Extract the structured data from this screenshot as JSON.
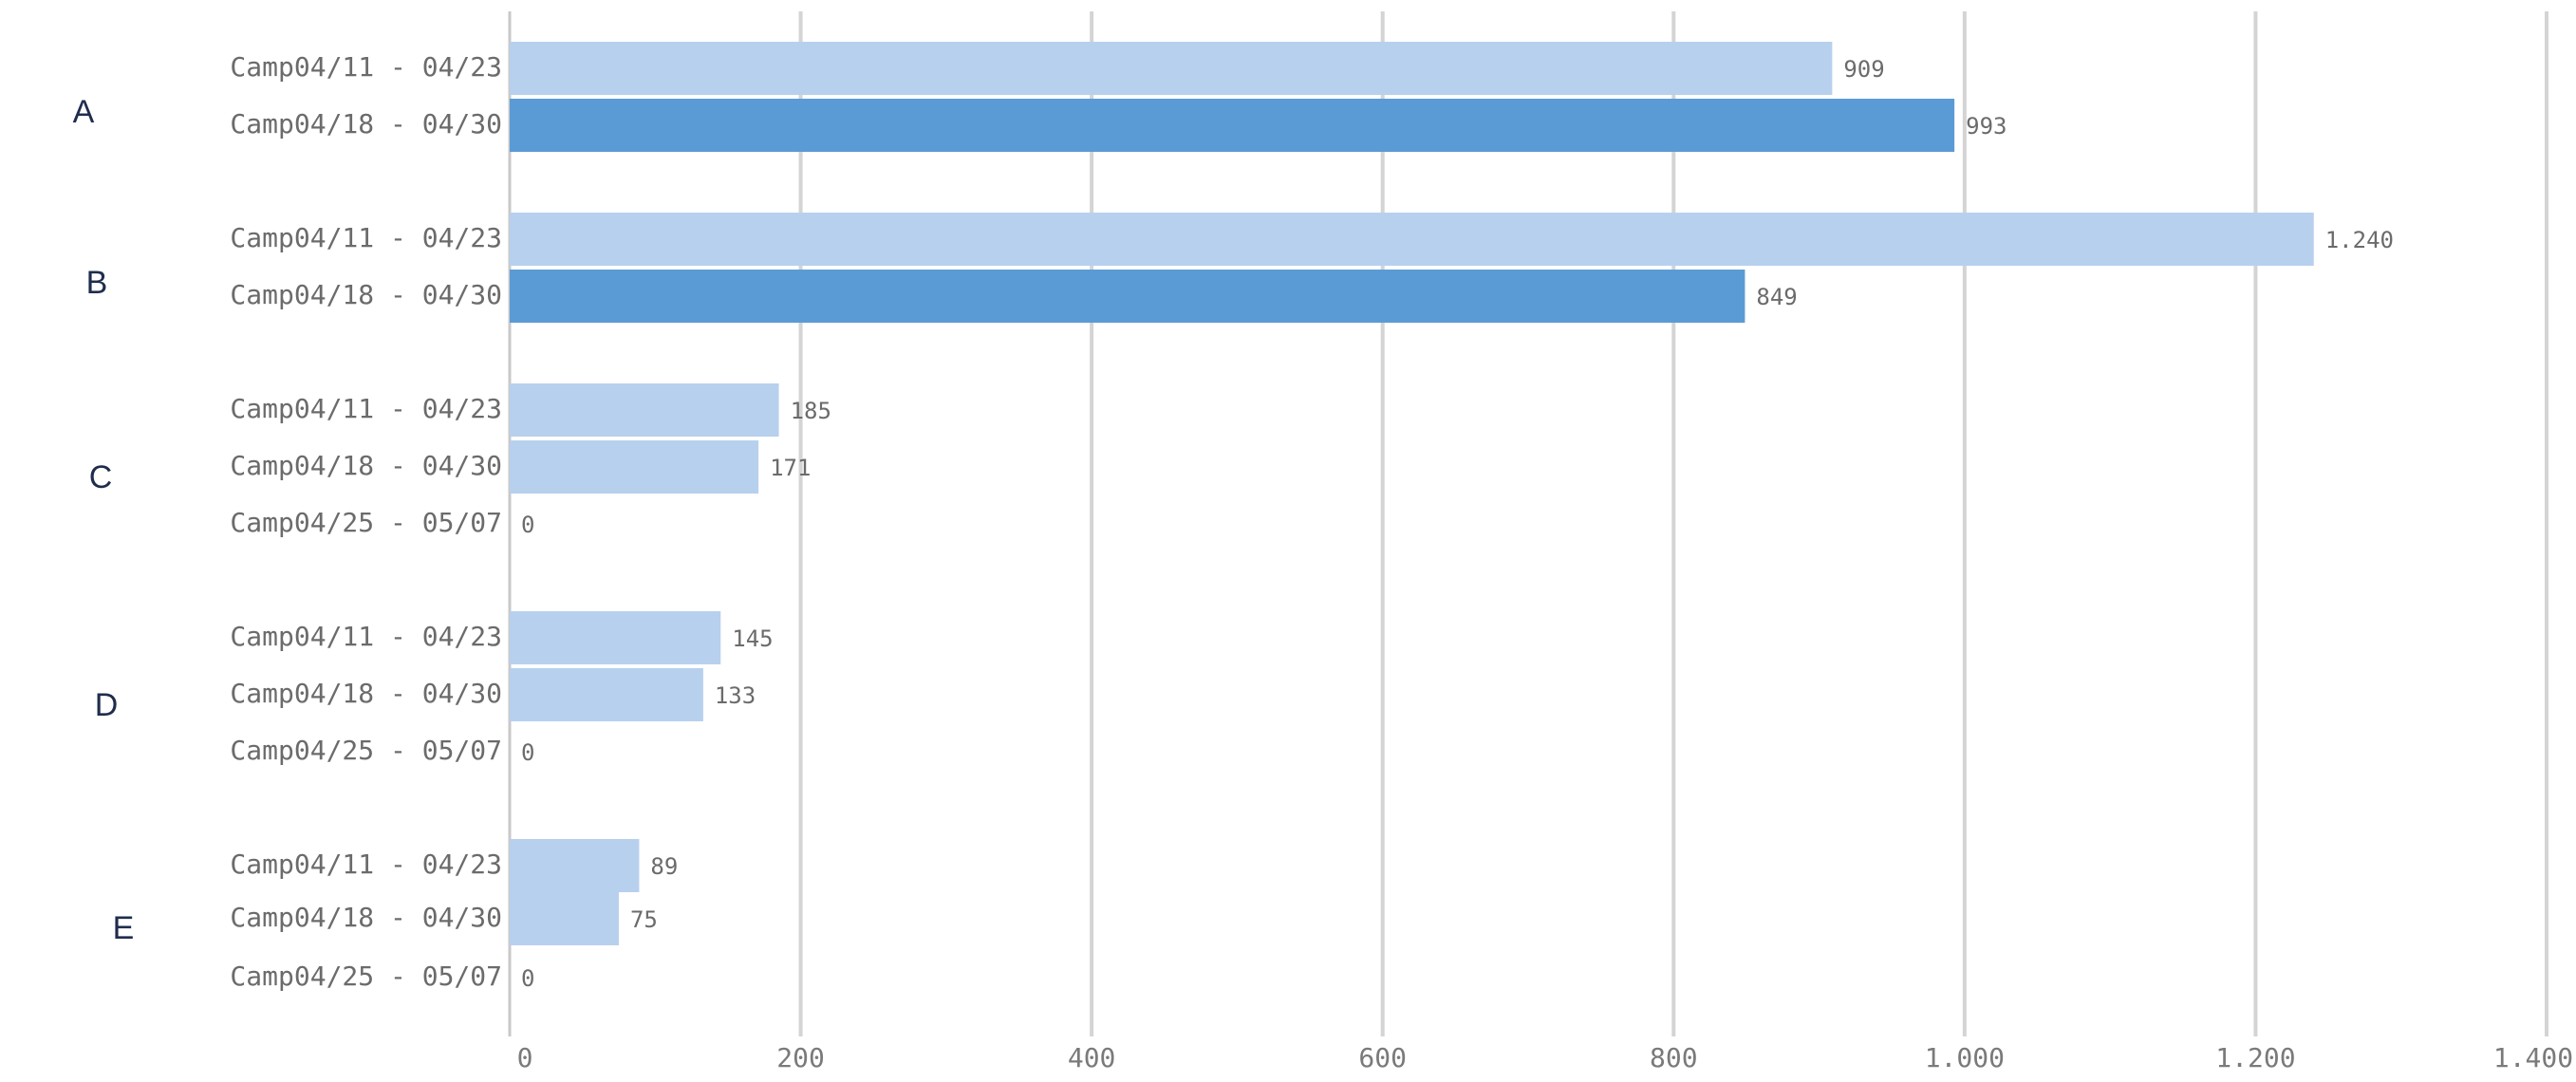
{
  "chart_data": {
    "type": "bar",
    "orientation": "horizontal",
    "xlim": [
      0,
      1400
    ],
    "x_ticks": [
      0,
      200,
      400,
      600,
      800,
      1000,
      1200,
      1400
    ],
    "x_tick_labels": [
      "0",
      "200",
      "400",
      "600",
      "800",
      "1.000",
      "1.200",
      "1.400"
    ],
    "grid": true,
    "colors": {
      "light": "#b7d0ee",
      "dark": "#5b9bd5"
    },
    "groups": [
      {
        "name": "A",
        "bars": [
          {
            "label": "Camp04/11 - 04/23",
            "value": 909,
            "value_label": "909",
            "color": "#b7d0ee"
          },
          {
            "label": "Camp04/18 - 04/30",
            "value": 993,
            "value_label": "993",
            "color": "#5b9bd5"
          }
        ]
      },
      {
        "name": "B",
        "bars": [
          {
            "label": "Camp04/11 - 04/23",
            "value": 1240,
            "value_label": "1.240",
            "color": "#b7d0ee"
          },
          {
            "label": "Camp04/18 - 04/30",
            "value": 849,
            "value_label": "849",
            "color": "#5b9bd5"
          }
        ]
      },
      {
        "name": "C",
        "bars": [
          {
            "label": "Camp04/11 - 04/23",
            "value": 185,
            "value_label": "185",
            "color": "#b7d0ee"
          },
          {
            "label": "Camp04/18 - 04/30",
            "value": 171,
            "value_label": "171",
            "color": "#b7d0ee"
          },
          {
            "label": "Camp04/25 - 05/07",
            "value": 0,
            "value_label": "0",
            "color": "#b7d0ee"
          }
        ]
      },
      {
        "name": "D",
        "bars": [
          {
            "label": "Camp04/11 - 04/23",
            "value": 145,
            "value_label": "145",
            "color": "#b7d0ee"
          },
          {
            "label": "Camp04/18 - 04/30",
            "value": 133,
            "value_label": "133",
            "color": "#b7d0ee"
          },
          {
            "label": "Camp04/25 - 05/07",
            "value": 0,
            "value_label": "0",
            "color": "#b7d0ee"
          }
        ]
      },
      {
        "name": "E",
        "bars": [
          {
            "label": "Camp04/11 - 04/23",
            "value": 89,
            "value_label": "89",
            "color": "#b7d0ee"
          },
          {
            "label": "Camp04/18 - 04/30",
            "value": 75,
            "value_label": "75",
            "color": "#b7d0ee"
          },
          {
            "label": "Camp04/25 - 05/07",
            "value": 0,
            "value_label": "0",
            "color": "#b7d0ee"
          }
        ]
      }
    ]
  }
}
